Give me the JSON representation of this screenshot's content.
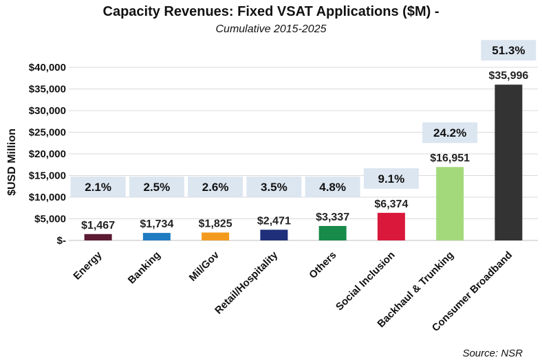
{
  "chart_data": {
    "type": "bar",
    "title": "Capacity Revenues: Fixed VSAT Applications  ($M) -",
    "subtitle": "Cumulative 2015-2025",
    "ylabel": "$USD Million",
    "xlabel": "",
    "source": "Source: NSR",
    "ylim": [
      0,
      40000
    ],
    "yticks": [
      0,
      5000,
      10000,
      15000,
      20000,
      25000,
      30000,
      35000,
      40000
    ],
    "ytick_labels": [
      "$-",
      "$5,000",
      "$10,000",
      "$15,000",
      "$20,000",
      "$25,000",
      "$30,000",
      "$35,000",
      "$40,000"
    ],
    "grid": true,
    "categories": [
      "Energy",
      "Banking",
      "Mil/Gov",
      "Retail/Hospitality",
      "Others",
      "Social Inclusion",
      "Backhaul & Trunking",
      "Consumer Broadband"
    ],
    "values": [
      1467,
      1734,
      1825,
      2471,
      3337,
      6374,
      16951,
      35996
    ],
    "value_labels": [
      "$1,467",
      "$1,734",
      "$1,825",
      "$2,471",
      "$3,337",
      "$6,374",
      "$16,951",
      "$35,996"
    ],
    "percent_labels": [
      "2.1%",
      "2.5%",
      "2.6%",
      "3.5%",
      "4.8%",
      "9.1%",
      "24.2%",
      "51.3%"
    ],
    "colors": [
      "#5c1a33",
      "#1f7cc2",
      "#f39a1e",
      "#1f2f7a",
      "#188a4a",
      "#d9183b",
      "#a3d97a",
      "#333333"
    ],
    "percent_box_color": "#dce6f1"
  }
}
